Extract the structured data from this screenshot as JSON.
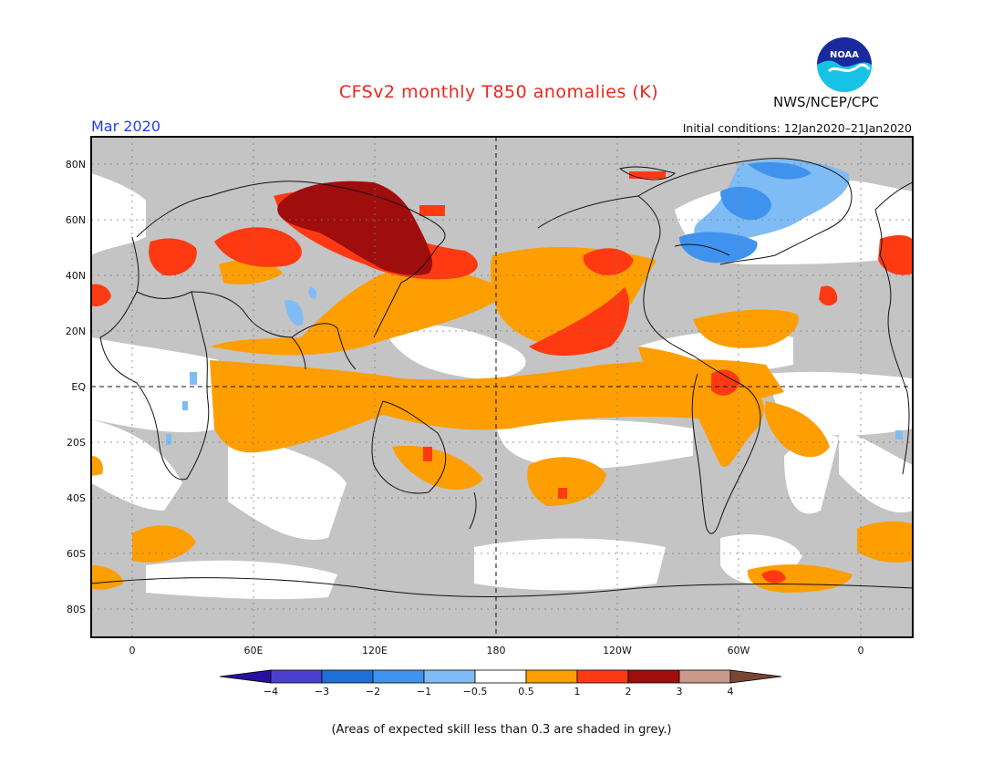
{
  "header": {
    "title": "CFSv2 monthly T850 anomalies (K)",
    "agency": "NWS/NCEP/CPC",
    "month": "Mar 2020",
    "initial_conditions": "Initial conditions: 12Jan2020–21Jan2020",
    "logo_text": "NOAA"
  },
  "map": {
    "lat_labels": [
      "80N",
      "60N",
      "40N",
      "20N",
      "EQ",
      "20S",
      "40S",
      "60S",
      "80S"
    ],
    "lon_labels": [
      "0",
      "60E",
      "120E",
      "180",
      "120W",
      "60W",
      "0"
    ],
    "skill_mask_color": "#c4c4c4"
  },
  "colorbar": {
    "labels": [
      "−4",
      "−3",
      "−2",
      "−1",
      "−0.5",
      "0.5",
      "1",
      "2",
      "3",
      "4"
    ],
    "colors": [
      "#2a0f9f",
      "#4a3fd0",
      "#1e6fd8",
      "#3f93ee",
      "#7fbcf6",
      "#ffffff",
      "#ff9e00",
      "#ff3a12",
      "#a00d0d",
      "#c99a8c",
      "#7a4535"
    ]
  },
  "footnote": "(Areas of expected skill less than 0.3 are shaded in grey.)"
}
